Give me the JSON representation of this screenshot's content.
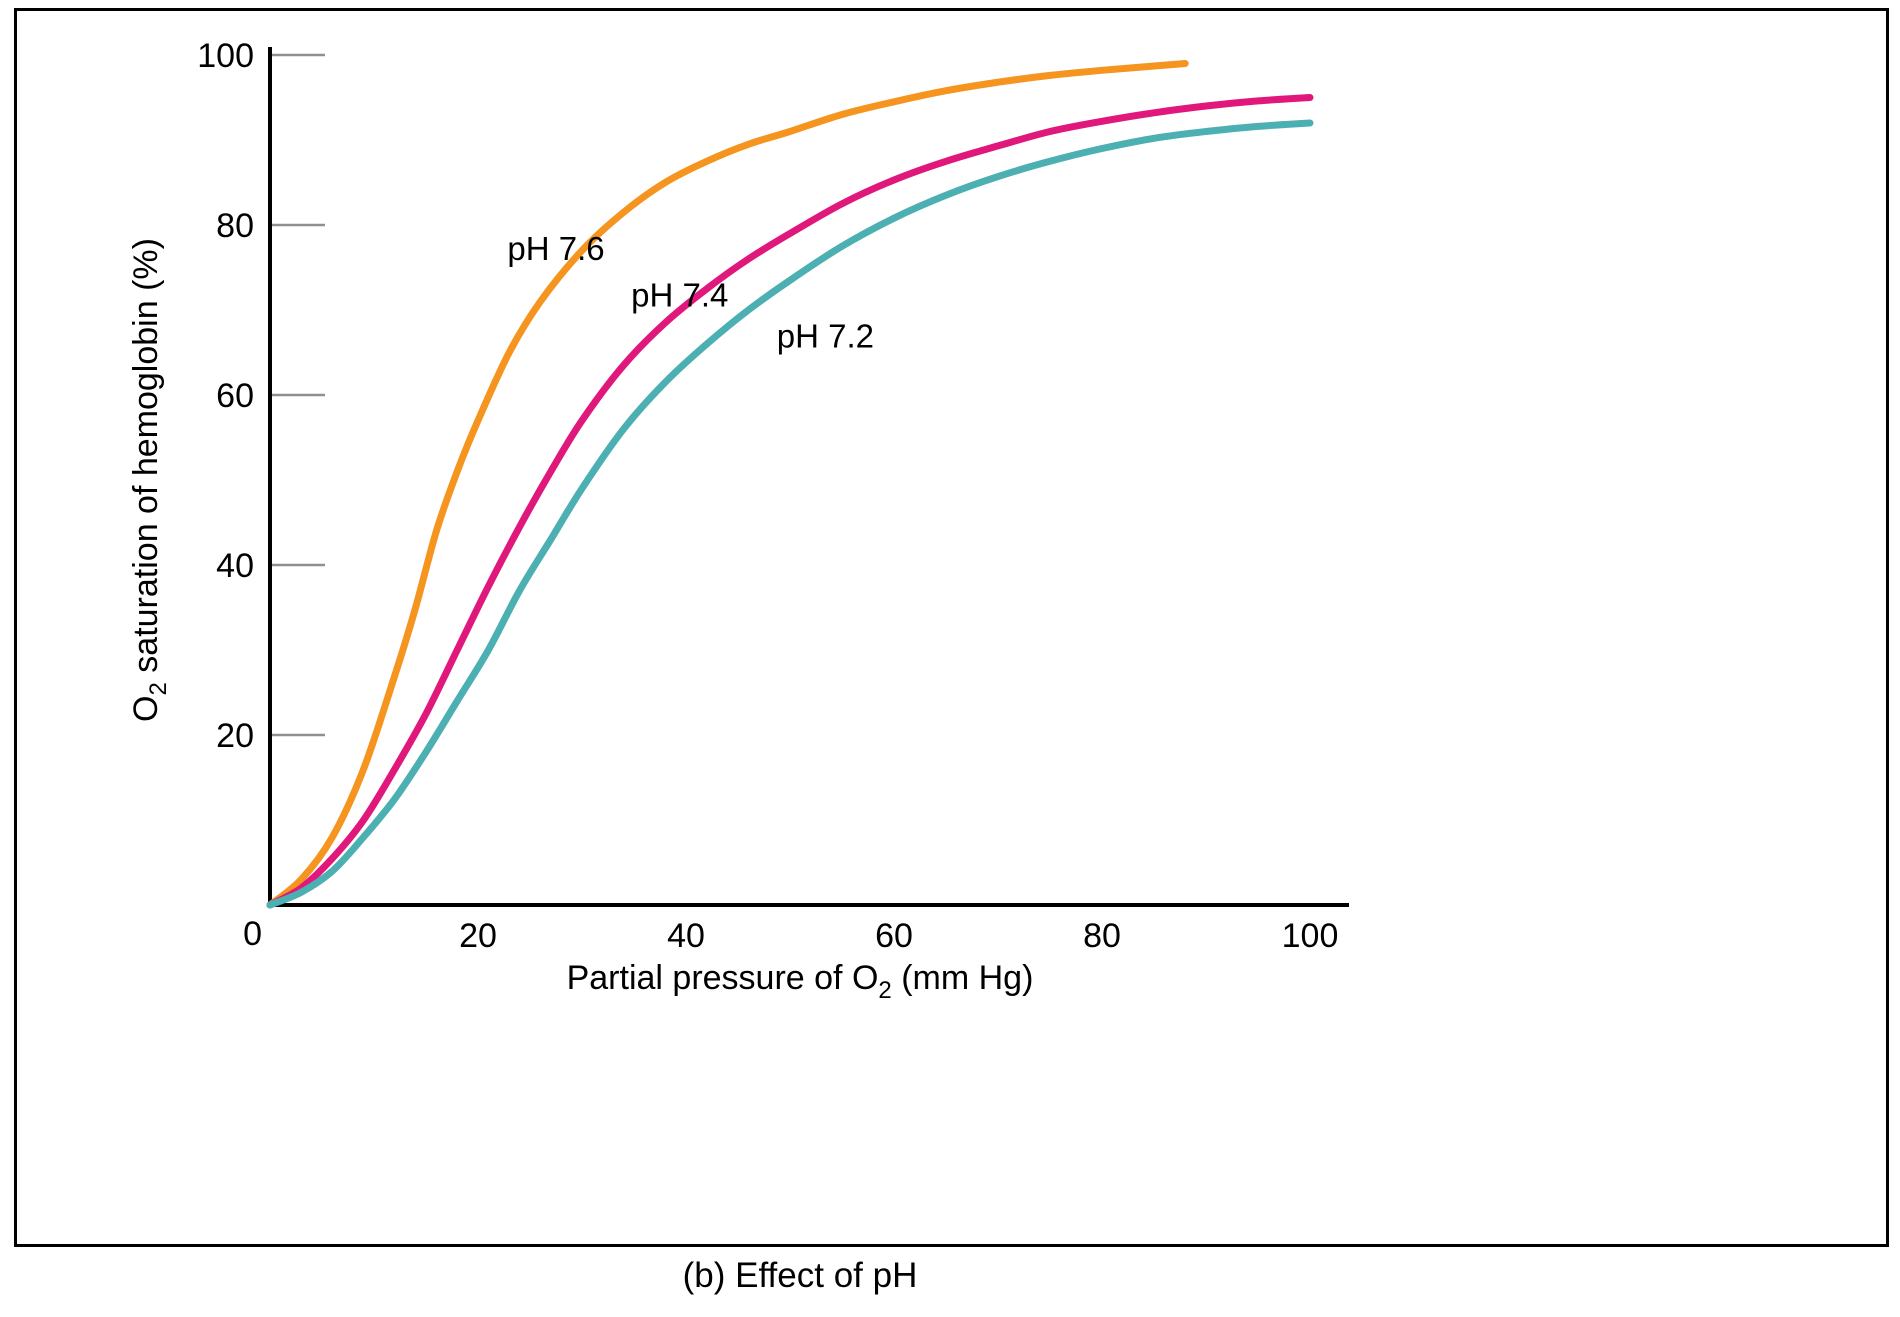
{
  "page": {
    "caption": "(b) Effect of pH"
  },
  "chart_data": {
    "type": "line",
    "title": "",
    "xlabel": "Partial pressure of O2 (mm Hg)",
    "ylabel": "O2 saturation of hemoglobin (%)",
    "xlabel_parts": {
      "pre": "Partial pressure of O",
      "sub": "2",
      "post": " (mm Hg)"
    },
    "ylabel_parts": {
      "pre": "O",
      "sub": "2",
      "post": " saturation of hemoglobin (%)"
    },
    "xlim": [
      0,
      100
    ],
    "ylim": [
      0,
      100
    ],
    "x_ticks": [
      0,
      20,
      40,
      60,
      80,
      100
    ],
    "y_ticks": [
      0,
      20,
      40,
      60,
      80,
      100
    ],
    "grid": "short gray stubs at y-axis ticks only",
    "legend": "inline curve labels",
    "axis_color": "#000000",
    "stub_color": "#8f8f8f",
    "series": [
      {
        "name": "pH 7.6",
        "color": "#F5941F",
        "label": {
          "text": "pH 7.6",
          "x": 27.5,
          "y": 77.3
        },
        "points": [
          [
            0,
            0
          ],
          [
            3,
            3
          ],
          [
            6,
            8
          ],
          [
            9,
            16
          ],
          [
            12,
            27
          ],
          [
            14,
            35
          ],
          [
            16,
            44
          ],
          [
            18,
            51
          ],
          [
            20,
            57
          ],
          [
            23,
            65
          ],
          [
            26,
            71
          ],
          [
            30,
            77
          ],
          [
            34,
            81.5
          ],
          [
            38,
            85
          ],
          [
            42,
            87.5
          ],
          [
            46,
            89.5
          ],
          [
            50,
            91
          ],
          [
            55,
            93
          ],
          [
            60,
            94.5
          ],
          [
            65,
            95.8
          ],
          [
            70,
            96.8
          ],
          [
            75,
            97.6
          ],
          [
            80,
            98.2
          ],
          [
            84,
            98.6
          ],
          [
            88,
            99
          ]
        ]
      },
      {
        "name": "pH 7.4",
        "color": "#E0187C",
        "label": {
          "text": "pH 7.4",
          "x": 39.4,
          "y": 71.8
        },
        "points": [
          [
            0,
            0
          ],
          [
            3,
            2
          ],
          [
            6,
            5.5
          ],
          [
            9,
            10
          ],
          [
            12,
            16
          ],
          [
            15,
            22.5
          ],
          [
            18,
            30
          ],
          [
            21,
            37.5
          ],
          [
            24,
            44.5
          ],
          [
            27,
            51
          ],
          [
            30,
            57
          ],
          [
            34,
            63.5
          ],
          [
            38,
            68.5
          ],
          [
            42,
            72.5
          ],
          [
            46,
            76
          ],
          [
            50,
            79
          ],
          [
            55,
            82.5
          ],
          [
            60,
            85.3
          ],
          [
            65,
            87.5
          ],
          [
            70,
            89.3
          ],
          [
            75,
            91
          ],
          [
            80,
            92.2
          ],
          [
            85,
            93.2
          ],
          [
            90,
            94
          ],
          [
            95,
            94.6
          ],
          [
            100,
            95
          ]
        ]
      },
      {
        "name": "pH 7.2",
        "color": "#4CAFB2",
        "label": {
          "text": "pH 7.2",
          "x": 53.4,
          "y": 67
        },
        "points": [
          [
            0,
            0
          ],
          [
            3,
            1.5
          ],
          [
            6,
            4
          ],
          [
            9,
            8
          ],
          [
            12,
            12.5
          ],
          [
            15,
            18
          ],
          [
            18,
            24
          ],
          [
            21,
            30
          ],
          [
            24,
            37
          ],
          [
            27,
            43
          ],
          [
            30,
            49
          ],
          [
            34,
            56
          ],
          [
            38,
            61.5
          ],
          [
            42,
            66
          ],
          [
            46,
            70
          ],
          [
            50,
            73.5
          ],
          [
            55,
            77.5
          ],
          [
            60,
            80.8
          ],
          [
            65,
            83.5
          ],
          [
            70,
            85.7
          ],
          [
            75,
            87.5
          ],
          [
            80,
            89
          ],
          [
            85,
            90.2
          ],
          [
            90,
            91
          ],
          [
            95,
            91.6
          ],
          [
            100,
            92
          ]
        ]
      }
    ]
  }
}
